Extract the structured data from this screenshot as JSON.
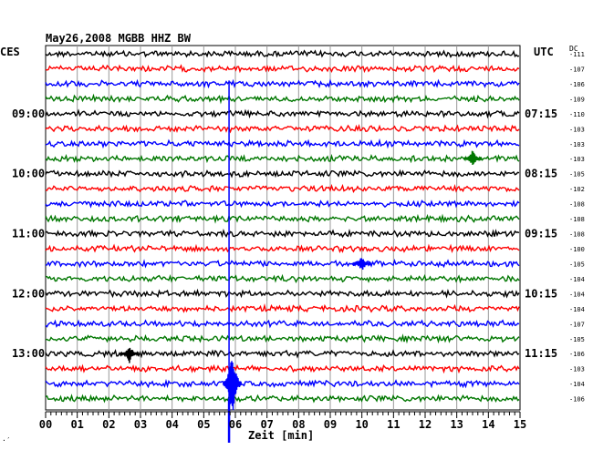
{
  "header": {
    "title": "May26,2008   MGBB HHZ BW",
    "left_zone": "CES",
    "right_zone": "UTC",
    "dc_label": "DC"
  },
  "chart_data": {
    "type": "line",
    "title": "May26,2008   MGBB HHZ BW",
    "xlabel": "Zeit [min]",
    "xlim": [
      0,
      15
    ],
    "x_ticks": [
      "00",
      "01",
      "02",
      "03",
      "04",
      "05",
      "06",
      "07",
      "08",
      "09",
      "10",
      "11",
      "12",
      "13",
      "14",
      "15"
    ],
    "grid": true,
    "trace_colors": [
      "#000000",
      "#ff0000",
      "#0000ff",
      "#007700"
    ],
    "dc_offsets": [
      -111,
      -107,
      -106,
      -109,
      -110,
      -103,
      -103,
      -103,
      -105,
      -102,
      -108,
      -108,
      -108,
      -100,
      -105,
      -104,
      -104,
      -104,
      -107,
      -105,
      -106,
      -103,
      -104,
      -106
    ],
    "left_time_labels": [
      {
        "trace": 4,
        "text": "09:00"
      },
      {
        "trace": 8,
        "text": "10:00"
      },
      {
        "trace": 12,
        "text": "11:00"
      },
      {
        "trace": 16,
        "text": "12:00"
      },
      {
        "trace": 20,
        "text": "13:00"
      }
    ],
    "right_time_labels": [
      {
        "trace": 4,
        "text": "07:15"
      },
      {
        "trace": 8,
        "text": "08:15"
      },
      {
        "trace": 12,
        "text": "09:15"
      },
      {
        "trace": 16,
        "text": "10:15"
      },
      {
        "trace": 20,
        "text": "11:15"
      }
    ],
    "events": [
      {
        "trace": 7,
        "minute": 13.5,
        "amplitude": 10
      },
      {
        "trace": 14,
        "minute": 10.0,
        "amplitude": 9
      },
      {
        "trace": 20,
        "minute": 2.65,
        "amplitude": 11
      },
      {
        "trace": 22,
        "minute": 5.9,
        "amplitude": 40
      }
    ],
    "big_event": {
      "minute": 5.8,
      "first_trace": 3,
      "last_trace": 23
    }
  },
  "footer": {
    "mark": "·′"
  }
}
